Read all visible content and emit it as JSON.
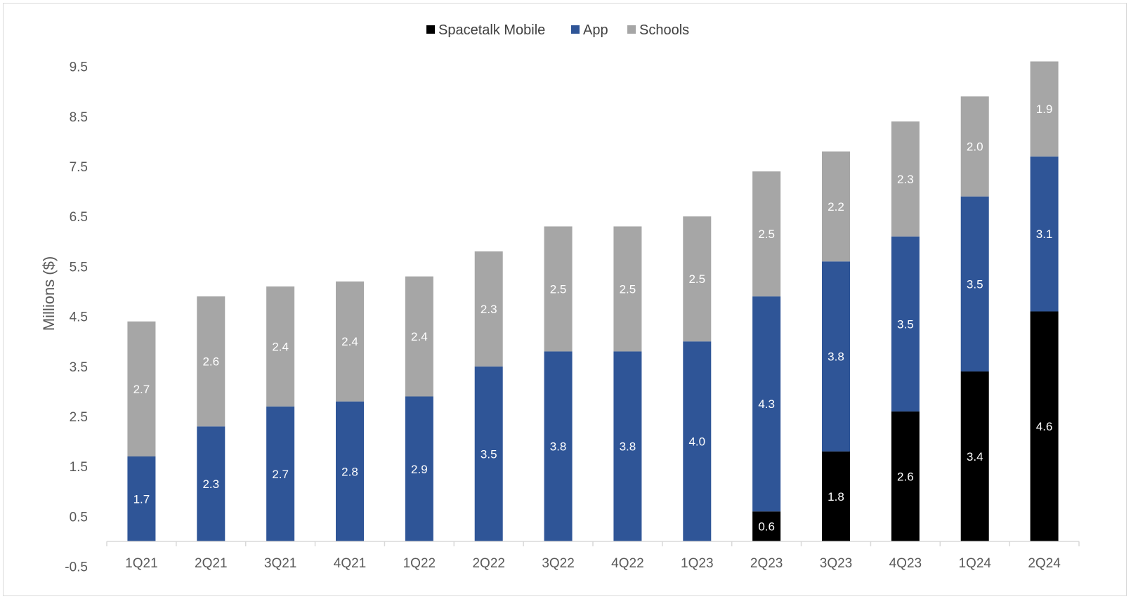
{
  "chart_data": {
    "type": "bar",
    "stacked": true,
    "categories": [
      "1Q21",
      "2Q21",
      "3Q21",
      "4Q21",
      "1Q22",
      "2Q22",
      "3Q22",
      "4Q22",
      "1Q23",
      "2Q23",
      "3Q23",
      "4Q23",
      "1Q24",
      "2Q24"
    ],
    "series": [
      {
        "name": "Spacetalk Mobile",
        "color": "#000000",
        "label_color": "#ffffff",
        "values": [
          null,
          null,
          null,
          null,
          null,
          null,
          null,
          null,
          null,
          0.6,
          1.8,
          2.6,
          3.4,
          4.6
        ],
        "labels": [
          null,
          null,
          null,
          null,
          null,
          null,
          null,
          null,
          null,
          "0.6",
          "1.8",
          "2.6",
          "3.4",
          "4.6"
        ]
      },
      {
        "name": "App",
        "color": "#2f5597",
        "label_color": "#ffffff",
        "values": [
          1.7,
          2.3,
          2.7,
          2.8,
          2.9,
          3.5,
          3.8,
          3.8,
          4.0,
          4.3,
          3.8,
          3.5,
          3.5,
          3.1
        ],
        "labels": [
          "1.7",
          "2.3",
          "2.7",
          "2.8",
          "2.9",
          "3.5",
          "3.8",
          "3.8",
          "4.0",
          "4.3",
          "3.8",
          "3.5",
          "3.5",
          "3.1"
        ]
      },
      {
        "name": "Schools",
        "color": "#a6a6a6",
        "label_color": "#ffffff",
        "values": [
          2.7,
          2.6,
          2.4,
          2.4,
          2.4,
          2.3,
          2.5,
          2.5,
          2.5,
          2.5,
          2.2,
          2.3,
          2.0,
          1.9
        ],
        "labels": [
          "2.7",
          "2.6",
          "2.4",
          "2.4",
          "2.4",
          "2.3",
          "2.5",
          "2.5",
          "2.5",
          "2.5",
          "2.2",
          "2.3",
          "2.0",
          "1.9"
        ]
      }
    ],
    "title": "",
    "xlabel": "",
    "ylabel": "Millions ($)",
    "ylim": [
      -0.5,
      9.5
    ],
    "yticks": [
      "-0.5",
      "0.5",
      "1.5",
      "2.5",
      "3.5",
      "4.5",
      "5.5",
      "6.5",
      "7.5",
      "8.5",
      "9.5"
    ],
    "grid": false,
    "legend": "top-center"
  }
}
